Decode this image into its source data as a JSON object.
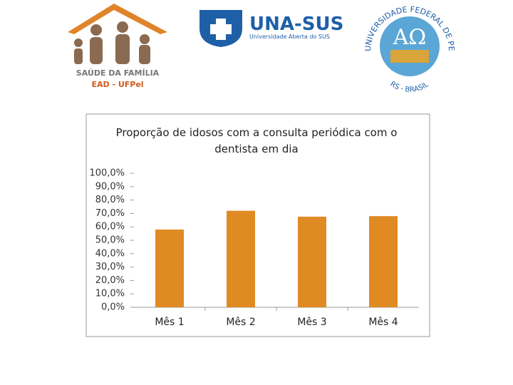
{
  "logos": {
    "saude_familia": {
      "title": "SAÚDE DA FAMÍLIA",
      "subtitle": "EAD - UFPel"
    },
    "unasus": {
      "title": "UNA-SUS",
      "subtitle": "Universidade Aberta do SUS"
    },
    "ufpel": {
      "ring": "UNIVERSIDADE FEDERAL DE PELOTAS",
      "bottom": "RS - BRASIL"
    }
  },
  "chart_data": {
    "type": "bar",
    "title": "Proporção de idosos com a consulta periódica com o dentista em dia",
    "categories": [
      "Mês 1",
      "Mês 2",
      "Mês 3",
      "Mês 4"
    ],
    "values": [
      58,
      72,
      67.6,
      68
    ],
    "color": "#e08a24",
    "ylim": [
      0,
      100
    ],
    "yticks": [
      {
        "value": 0,
        "label": "0,0%"
      },
      {
        "value": 10,
        "label": "10,0%"
      },
      {
        "value": 20,
        "label": "20,0%"
      },
      {
        "value": 30,
        "label": "30,0%"
      },
      {
        "value": 40,
        "label": "40,0%"
      },
      {
        "value": 50,
        "label": "50,0%"
      },
      {
        "value": 60,
        "label": "60,0%"
      },
      {
        "value": 70,
        "label": "70,0%"
      },
      {
        "value": 80,
        "label": "80,0%"
      },
      {
        "value": 90,
        "label": "90,0%"
      },
      {
        "value": 100,
        "label": "100,0%"
      }
    ],
    "grid": false
  }
}
